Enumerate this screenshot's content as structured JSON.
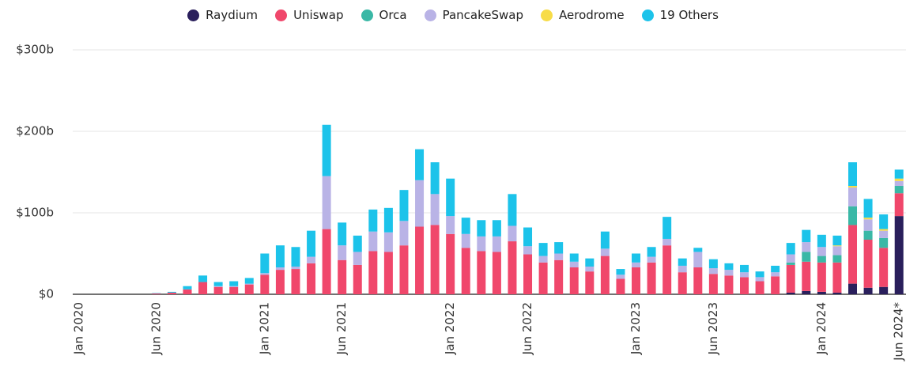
{
  "chart_data": {
    "type": "stacked_bar",
    "categories": [
      "Jan 2020",
      null,
      null,
      null,
      null,
      "Jun 2020",
      null,
      null,
      null,
      null,
      null,
      null,
      "Jan 2021",
      null,
      null,
      null,
      null,
      "Jun 2021",
      null,
      null,
      null,
      null,
      null,
      null,
      "Jan 2022",
      null,
      null,
      null,
      null,
      "Jun 2022",
      null,
      null,
      null,
      null,
      null,
      null,
      "Jan 2023",
      null,
      null,
      null,
      null,
      "Jun 2023",
      null,
      null,
      null,
      null,
      null,
      null,
      "Jan 2024",
      null,
      null,
      null,
      null,
      "Jun 2024*"
    ],
    "series": [
      {
        "name": "Raydium",
        "color": "#2a1f5c",
        "values": [
          0,
          0,
          0,
          0,
          0,
          0,
          0,
          0,
          0,
          0,
          0,
          0,
          0,
          0,
          0,
          0,
          0,
          0,
          0,
          0,
          0,
          0,
          0,
          0,
          0,
          0,
          0,
          0,
          0,
          0,
          0,
          0,
          0,
          0,
          0,
          0,
          0,
          0,
          0,
          0,
          0,
          0,
          0,
          0,
          0,
          0,
          2,
          4,
          3,
          2,
          13,
          8,
          9,
          96
        ]
      },
      {
        "name": "Uniswap",
        "color": "#f0476b",
        "values": [
          0,
          0,
          0,
          0,
          0,
          1,
          2,
          6,
          15,
          9,
          9,
          12,
          24,
          30,
          31,
          38,
          80,
          42,
          36,
          53,
          52,
          60,
          83,
          85,
          74,
          57,
          53,
          52,
          65,
          49,
          39,
          42,
          33,
          28,
          47,
          19,
          33,
          39,
          60,
          27,
          33,
          25,
          23,
          21,
          16,
          22,
          34,
          36,
          36,
          37,
          72,
          59,
          48,
          28
        ]
      },
      {
        "name": "Orca",
        "color": "#3ab8a6",
        "values": [
          0,
          0,
          0,
          0,
          0,
          0,
          0,
          0,
          0,
          0,
          0,
          0,
          0,
          0,
          0,
          0,
          0,
          0,
          0,
          0,
          0,
          0,
          0,
          0,
          0,
          0,
          0,
          0,
          0,
          0,
          0,
          0,
          0,
          0,
          0,
          0,
          0,
          0,
          0,
          0,
          0,
          0,
          0,
          0,
          0,
          0,
          3,
          12,
          8,
          9,
          23,
          11,
          12,
          9
        ]
      },
      {
        "name": "PancakeSwap",
        "color": "#b9b3e6",
        "values": [
          0,
          0,
          0,
          0,
          0,
          0,
          0,
          0,
          0,
          1,
          1,
          1,
          2,
          3,
          3,
          8,
          65,
          18,
          16,
          24,
          24,
          30,
          57,
          38,
          22,
          17,
          18,
          19,
          19,
          10,
          8,
          8,
          7,
          6,
          9,
          5,
          6,
          7,
          8,
          8,
          19,
          7,
          7,
          6,
          5,
          5,
          10,
          12,
          11,
          11,
          23,
          14,
          9,
          6
        ]
      },
      {
        "name": "Aerodrome",
        "color": "#f7dc47",
        "values": [
          0,
          0,
          0,
          0,
          0,
          0,
          0,
          0,
          0,
          0,
          0,
          0,
          0,
          0,
          0,
          0,
          0,
          0,
          0,
          0,
          0,
          0,
          0,
          0,
          0,
          0,
          0,
          0,
          0,
          0,
          0,
          0,
          0,
          0,
          0,
          0,
          0,
          0,
          0,
          0,
          0,
          0,
          0,
          0,
          0,
          0,
          0,
          0,
          0,
          1,
          2,
          2,
          2,
          3
        ]
      },
      {
        "name": "19 Others",
        "color": "#1cc3ea",
        "values": [
          0,
          0,
          0,
          0,
          0,
          0.5,
          1,
          4,
          8,
          5,
          6,
          7,
          24,
          27,
          24,
          32,
          63,
          28,
          20,
          27,
          30,
          38,
          38,
          39,
          46,
          20,
          20,
          20,
          39,
          23,
          16,
          14,
          10,
          10,
          21,
          7,
          11,
          12,
          27,
          9,
          5,
          11,
          8,
          9,
          7,
          8,
          14,
          15,
          15,
          12,
          29,
          23,
          18,
          11
        ]
      }
    ],
    "ylim": [
      0,
      300
    ],
    "yticks": [
      {
        "value": 0,
        "label": "$0"
      },
      {
        "value": 100,
        "label": "$100b"
      },
      {
        "value": 200,
        "label": "$200b"
      },
      {
        "value": 300,
        "label": "$300b"
      }
    ],
    "grid": true
  }
}
